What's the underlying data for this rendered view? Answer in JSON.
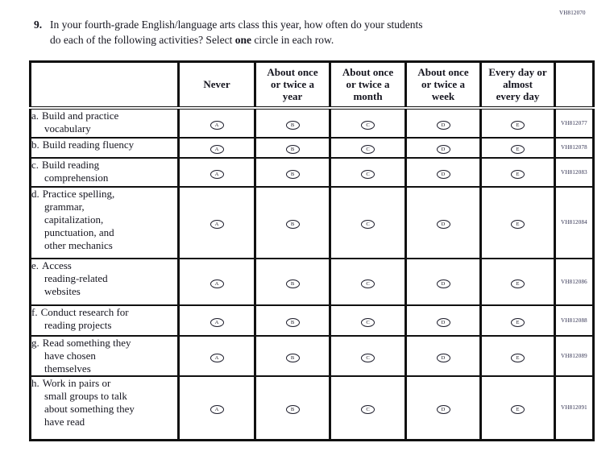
{
  "page": {
    "top_right_code": "VH812070"
  },
  "question": {
    "number": "9.",
    "line1": "In your fourth-grade English/language arts class this year, how often do your students",
    "line2_pre": "do each of the following activities? Select ",
    "line2_bold": "one",
    "line2_post": " circle in each row."
  },
  "table": {
    "option_headers": [
      {
        "key": "never",
        "lines": [
          "Never"
        ]
      },
      {
        "key": "year",
        "lines": [
          "About once",
          "or twice a",
          "year"
        ]
      },
      {
        "key": "month",
        "lines": [
          "About once",
          "or twice a",
          "month"
        ]
      },
      {
        "key": "week",
        "lines": [
          "About once",
          "or twice a",
          "week"
        ]
      },
      {
        "key": "everyday",
        "lines": [
          "Every day or",
          "almost",
          "every day"
        ]
      }
    ],
    "bubble_letters": [
      "A",
      "B",
      "C",
      "D",
      "E"
    ],
    "rows": [
      {
        "letter": "a.",
        "lines": [
          "Build and practice",
          "vocabulary"
        ],
        "code": "VH812077"
      },
      {
        "letter": "b.",
        "lines": [
          "Build reading fluency"
        ],
        "code": "VH812078"
      },
      {
        "letter": "c.",
        "lines": [
          "Build reading",
          "comprehension"
        ],
        "code": "VH812083"
      },
      {
        "letter": "d.",
        "lines": [
          "Practice spelling,",
          "grammar,",
          "capitalization,",
          "punctuation, and",
          "other mechanics"
        ],
        "code": "VH812084"
      },
      {
        "letter": "e.",
        "lines": [
          "Access",
          "reading-related",
          "websites"
        ],
        "code": "VH812086"
      },
      {
        "letter": "f.",
        "lines": [
          "Conduct research for",
          "reading projects"
        ],
        "code": "VH812088"
      },
      {
        "letter": "g.",
        "lines": [
          "Read something they",
          "have chosen",
          "themselves"
        ],
        "code": "VH812089"
      },
      {
        "letter": "h.",
        "lines": [
          "Work in pairs or",
          "small groups to talk",
          "about something they",
          "have read"
        ],
        "code": "VH812091"
      }
    ]
  },
  "colors": {
    "ink": "#15151f",
    "border": "#111111",
    "code_ink": "#2e2e4e"
  }
}
